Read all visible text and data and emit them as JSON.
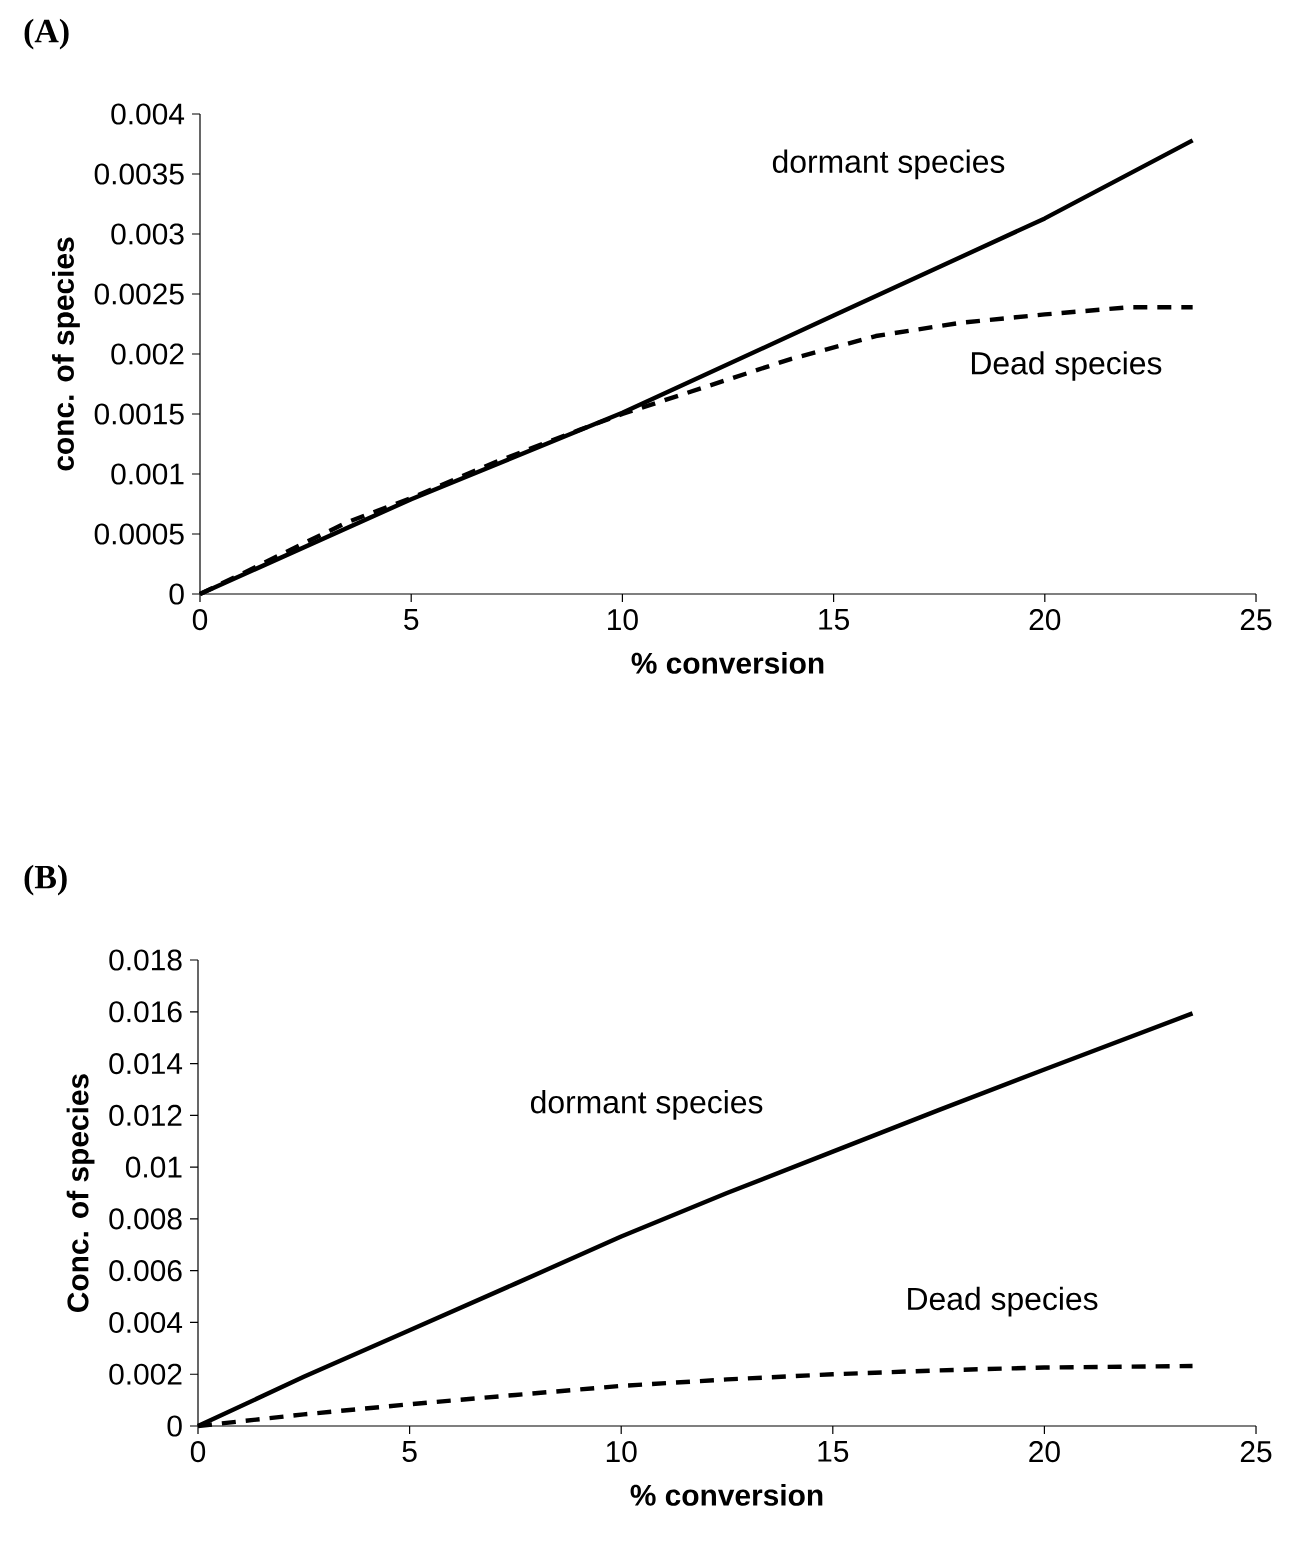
{
  "chart_data": [
    {
      "type": "line",
      "title": "(A)",
      "xlabel": "% conversion",
      "ylabel": "conc. of species",
      "xlim": [
        0,
        25
      ],
      "ylim": [
        0,
        0.004
      ],
      "xticks": [
        0,
        5,
        10,
        15,
        20,
        25
      ],
      "yticks": [
        0,
        0.0005,
        0.001,
        0.0015,
        0.002,
        0.0025,
        0.003,
        0.0035,
        0.004
      ],
      "series": [
        {
          "color": "#000000",
          "line_style": "solid",
          "x": [
            0,
            5,
            10,
            15,
            20,
            23.5
          ],
          "values": [
            0,
            0.00079,
            0.00151,
            0.00232,
            0.00313,
            0.00378
          ]
        },
        {
          "color": "#000000",
          "line_style": "dashed",
          "x": [
            0,
            1,
            2.5,
            3.5,
            5,
            7,
            9,
            10,
            12,
            14,
            16,
            18,
            20,
            22,
            23.5
          ],
          "values": [
            0,
            0.00017,
            0.00043,
            0.0006,
            0.0008,
            0.0011,
            0.00137,
            0.0015,
            0.00173,
            0.00196,
            0.00215,
            0.00226,
            0.00233,
            0.00239,
            0.00239
          ]
        }
      ],
      "annotations": [
        "dormant species",
        "Dead species"
      ]
    },
    {
      "type": "line",
      "title": "(B)",
      "xlabel": "% conversion",
      "ylabel": "Conc. of species",
      "xlim": [
        0,
        25
      ],
      "ylim": [
        0,
        0.018
      ],
      "xticks": [
        0,
        5,
        10,
        15,
        20,
        25
      ],
      "yticks": [
        0,
        0.002,
        0.004,
        0.006,
        0.008,
        0.01,
        0.012,
        0.014,
        0.016,
        0.018
      ],
      "series": [
        {
          "color": "#000000",
          "line_style": "solid",
          "x": [
            0,
            2.5,
            5,
            7.5,
            10,
            12.5,
            15,
            17.5,
            20,
            23.5
          ],
          "values": [
            0,
            0.0019,
            0.0037,
            0.0055,
            0.00732,
            0.009,
            0.0106,
            0.0122,
            0.01377,
            0.01594
          ]
        },
        {
          "color": "#000000",
          "line_style": "dashed",
          "x": [
            0,
            2.5,
            5,
            7.5,
            10,
            12.5,
            15,
            17.5,
            20,
            23.5
          ],
          "values": [
            0,
            0.00045,
            0.00084,
            0.0012,
            0.00155,
            0.0018,
            0.002,
            0.00215,
            0.00226,
            0.00232
          ]
        }
      ],
      "annotations": [
        "dormant species",
        "Dead species"
      ]
    }
  ]
}
